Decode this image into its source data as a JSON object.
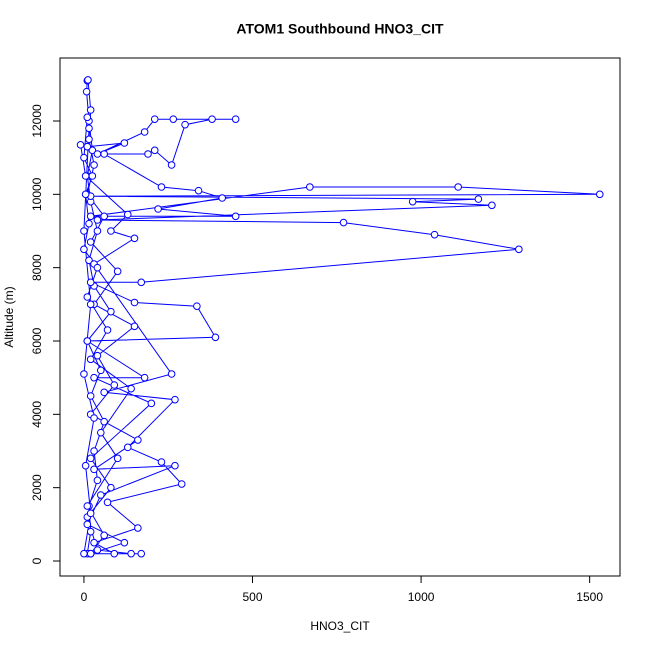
{
  "chart_data": {
    "type": "line",
    "title": "ATOM1 Southbound HNO3_CIT",
    "x_label": "HNO3_CIT",
    "y_label": "Altitude (m)",
    "xlim": [
      -71,
      1590
    ],
    "ylim": [
      -409,
      13718
    ],
    "xticks": [
      0,
      500,
      1000,
      1500
    ],
    "yticks": [
      0,
      2000,
      4000,
      6000,
      8000,
      10000,
      12000
    ],
    "series": [
      {
        "color": "#0000ff",
        "x": [
          10,
          20,
          15,
          40,
          30,
          60,
          20,
          50,
          10,
          80,
          30,
          15,
          40,
          20,
          10,
          25,
          15,
          8,
          10,
          12,
          20,
          15,
          30,
          10,
          60,
          20,
          100,
          30,
          150,
          40,
          90,
          20,
          160,
          30,
          270,
          50,
          10,
          120,
          20,
          140,
          40,
          10,
          80,
          20,
          200,
          30,
          180,
          10,
          390,
          335,
          150,
          20,
          170,
          1290,
          1040,
          770,
          40,
          1210,
          975,
          1170,
          20,
          1530,
          1110,
          670,
          20,
          450,
          220,
          410,
          340,
          230,
          60,
          190,
          210,
          260,
          300,
          380,
          450,
          265,
          210,
          180,
          40,
          120,
          10,
          -10,
          5,
          130,
          80,
          150,
          30,
          260,
          60,
          270,
          130,
          230,
          290,
          70,
          160,
          30,
          90,
          170,
          20,
          60,
          10,
          100,
          50,
          140,
          20,
          70,
          10,
          40,
          0,
          15,
          5,
          25,
          0,
          10,
          15,
          0,
          20,
          0,
          30,
          5,
          20,
          0
        ],
        "values": [
          200,
          800,
          1500,
          2200,
          3000,
          3800,
          4500,
          5200,
          6000,
          6800,
          7500,
          8200,
          9000,
          9800,
          10500,
          11200,
          12000,
          12800,
          13100,
          13120,
          12300,
          11500,
          10800,
          10000,
          9400,
          8700,
          7900,
          7000,
          6400,
          5600,
          4800,
          4000,
          3300,
          2500,
          2600,
          1800,
          1000,
          500,
          200,
          200,
          300,
          1200,
          2000,
          2800,
          4300,
          5000,
          5000,
          6000,
          6100,
          6950,
          7050,
          7600,
          7600,
          8500,
          8900,
          9230,
          9300,
          9700,
          9800,
          9870,
          9950,
          10000,
          10200,
          10200,
          9400,
          9400,
          9600,
          9900,
          10100,
          10200,
          11100,
          11100,
          11200,
          10800,
          11900,
          12050,
          12050,
          12050,
          12050,
          11700,
          11100,
          11400,
          11300,
          11350,
          10500,
          9450,
          9000,
          8800,
          8100,
          5100,
          4600,
          4400,
          3100,
          2700,
          2100,
          1600,
          900,
          500,
          200,
          200,
          200,
          700,
          1500,
          2800,
          3500,
          4700,
          5500,
          6300,
          7200,
          8000,
          8500,
          9200,
          10000,
          10500,
          11000,
          12100,
          11800,
          9000,
          7000,
          5100,
          3900,
          2600,
          1300,
          200
        ]
      }
    ]
  }
}
